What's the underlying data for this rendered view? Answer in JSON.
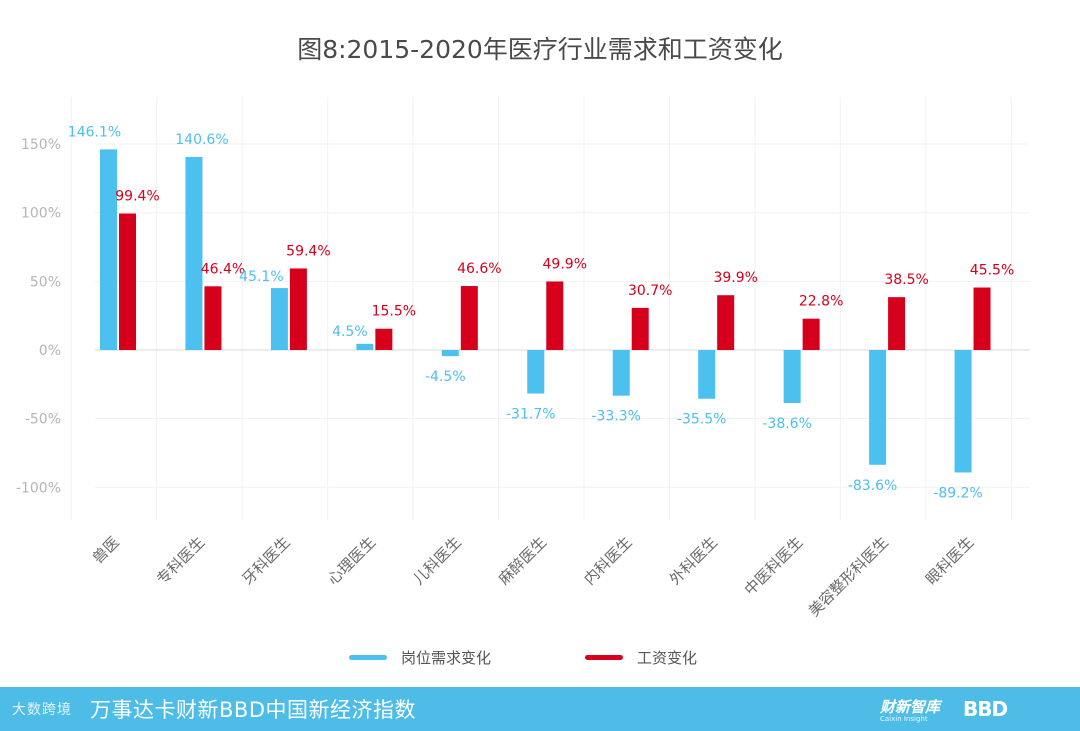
{
  "chart_data": {
    "type": "bar",
    "title": "图8:2015-2020年医疗行业需求和工资变化",
    "categories": [
      "兽医",
      "专科医生",
      "牙科医生",
      "心理医生",
      "儿科医生",
      "麻醉医生",
      "内科医生",
      "外科医生",
      "中医科医生",
      "美容整形科医生",
      "眼科医生"
    ],
    "series": [
      {
        "name": "岗位需求变化",
        "color": "#4cc0ee",
        "values": [
          146.1,
          140.6,
          45.1,
          4.5,
          -4.5,
          -31.7,
          -33.3,
          -35.5,
          -38.6,
          -83.6,
          -89.2
        ],
        "labels": [
          "146.1%",
          "140.6%",
          "45.1%",
          "4.5%",
          "-4.5%",
          "-31.7%",
          "-33.3%",
          "-35.5%",
          "-38.6%",
          "-83.6%",
          "-89.2%"
        ]
      },
      {
        "name": "工资变化",
        "color": "#d6001c",
        "values": [
          99.4,
          46.4,
          59.4,
          15.5,
          46.6,
          49.9,
          30.7,
          39.9,
          22.8,
          38.5,
          45.5
        ],
        "labels": [
          "99.4%",
          "46.4%",
          "59.4%",
          "15.5%",
          "46.6%",
          "49.9%",
          "30.7%",
          "39.9%",
          "22.8%",
          "38.5%",
          "45.5%"
        ]
      }
    ],
    "yticks": [
      150,
      100,
      50,
      0,
      -50,
      -100
    ],
    "ytick_labels": [
      "150%",
      "100%",
      "50%",
      "0%",
      "-50%",
      "-100%"
    ],
    "ylim": [
      -130,
      170
    ],
    "grid": true,
    "legend": "bottom-center"
  },
  "legend": {
    "demand": "岗位需求变化",
    "salary": "工资变化"
  },
  "footer": {
    "watermark": "大数跨境",
    "brand": "万事达卡财新BBD中国新经济指数",
    "logo1": "财新智库",
    "logo1_sub": "Caixin Insight",
    "logo2": "BBD"
  }
}
